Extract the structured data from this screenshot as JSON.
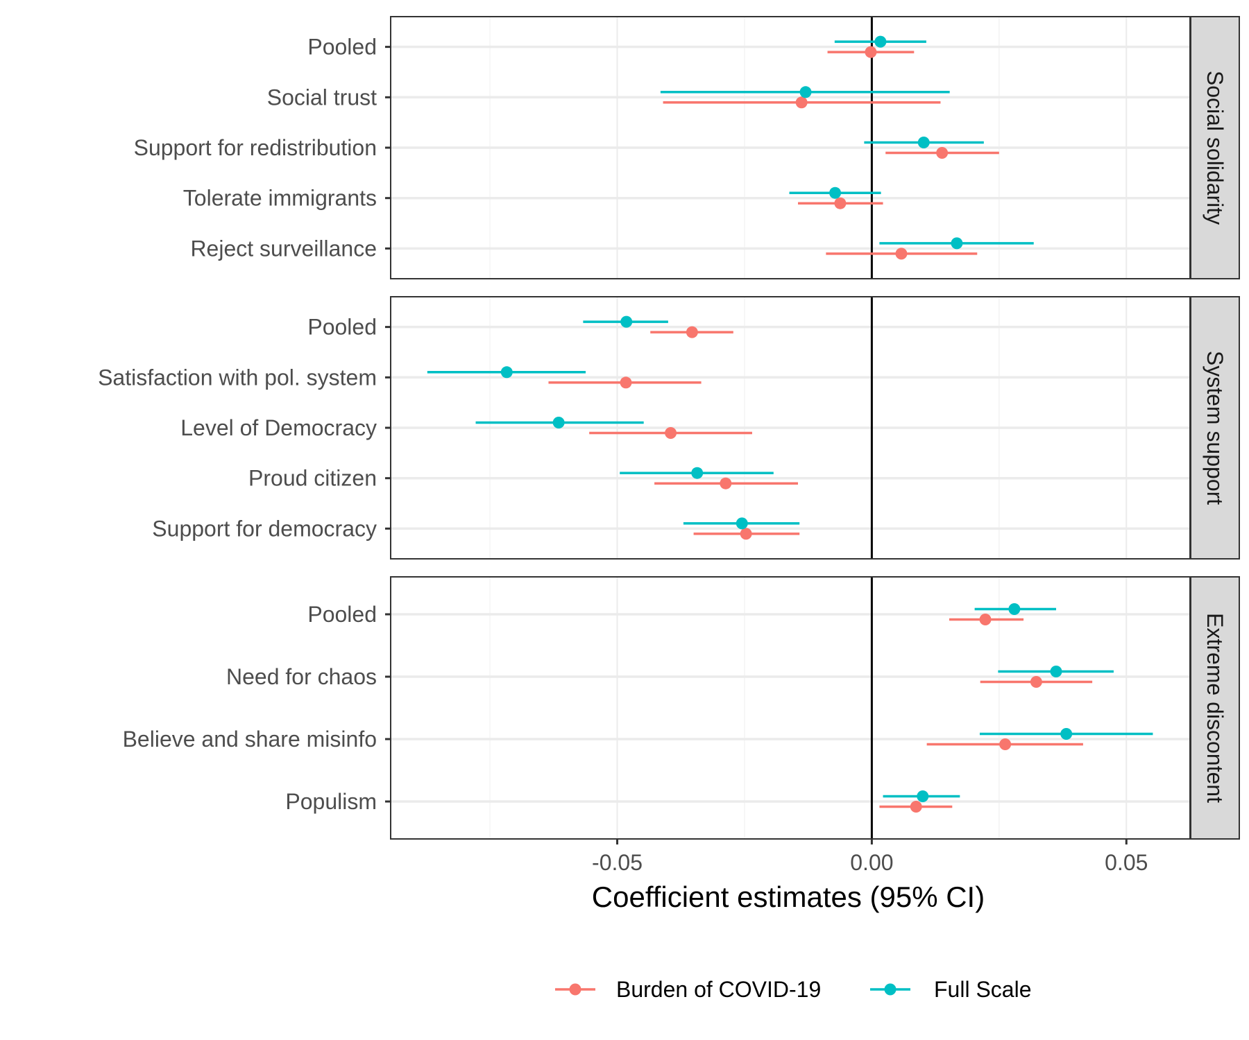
{
  "chart_data": {
    "type": "scatter",
    "subtype": "coefficient-plot",
    "xlabel": "Coefficient estimates (95% CI)",
    "x_ticks": [
      "-0.05",
      "0.00",
      "0.05"
    ],
    "x_tick_values": [
      -0.05,
      0.0,
      0.05
    ],
    "xlim": [
      -0.0945,
      0.0625
    ],
    "reference_line_x": 0,
    "grid": true,
    "legend_position": "bottom",
    "series_order": [
      "burden",
      "full"
    ],
    "series": [
      {
        "key": "burden",
        "name": "Burden of COVID-19",
        "color": "#F8766D"
      },
      {
        "key": "full",
        "name": "Full Scale",
        "color": "#00BFC4"
      }
    ],
    "panels": [
      {
        "strip": "Social solidarity",
        "rows": [
          {
            "label": "Pooled",
            "full": {
              "est": 0.0017,
              "lo": -0.0073,
              "hi": 0.0107
            },
            "burden": {
              "est": -0.0002,
              "lo": -0.0087,
              "hi": 0.0083
            }
          },
          {
            "label": "Social trust",
            "full": {
              "est": -0.013,
              "lo": -0.0415,
              "hi": 0.0153
            },
            "burden": {
              "est": -0.0138,
              "lo": -0.041,
              "hi": 0.0135
            }
          },
          {
            "label": "Support for redistribution",
            "full": {
              "est": 0.0102,
              "lo": -0.0015,
              "hi": 0.022
            },
            "burden": {
              "est": 0.0138,
              "lo": 0.0027,
              "hi": 0.025
            }
          },
          {
            "label": "Tolerate immigrants",
            "full": {
              "est": -0.0072,
              "lo": -0.0162,
              "hi": 0.0018
            },
            "burden": {
              "est": -0.0062,
              "lo": -0.0145,
              "hi": 0.0022
            }
          },
          {
            "label": "Reject surveillance",
            "full": {
              "est": 0.0167,
              "lo": 0.0015,
              "hi": 0.0318
            },
            "burden": {
              "est": 0.0058,
              "lo": -0.009,
              "hi": 0.0207
            }
          }
        ]
      },
      {
        "strip": "System support",
        "rows": [
          {
            "label": "Pooled",
            "full": {
              "est": -0.0482,
              "lo": -0.0567,
              "hi": -0.04
            },
            "burden": {
              "est": -0.0353,
              "lo": -0.0435,
              "hi": -0.0272
            }
          },
          {
            "label": "Satisfaction with pol. system",
            "full": {
              "est": -0.0717,
              "lo": -0.0873,
              "hi": -0.0562
            },
            "burden": {
              "est": -0.0483,
              "lo": -0.0635,
              "hi": -0.0335
            }
          },
          {
            "label": "Level of Democracy",
            "full": {
              "est": -0.0615,
              "lo": -0.0778,
              "hi": -0.0448
            },
            "burden": {
              "est": -0.0395,
              "lo": -0.0555,
              "hi": -0.0235
            }
          },
          {
            "label": "Proud citizen",
            "full": {
              "est": -0.0343,
              "lo": -0.0495,
              "hi": -0.0193
            },
            "burden": {
              "est": -0.0287,
              "lo": -0.0427,
              "hi": -0.0145
            }
          },
          {
            "label": "Support for democracy",
            "full": {
              "est": -0.0255,
              "lo": -0.037,
              "hi": -0.0142
            },
            "burden": {
              "est": -0.0247,
              "lo": -0.035,
              "hi": -0.0142
            }
          }
        ]
      },
      {
        "strip": "Extreme discontent",
        "rows": [
          {
            "label": "Pooled",
            "full": {
              "est": 0.028,
              "lo": 0.0202,
              "hi": 0.0362
            },
            "burden": {
              "est": 0.0223,
              "lo": 0.0152,
              "hi": 0.0298
            }
          },
          {
            "label": "Need for chaos",
            "full": {
              "est": 0.0362,
              "lo": 0.0248,
              "hi": 0.0475
            },
            "burden": {
              "est": 0.0323,
              "lo": 0.0213,
              "hi": 0.0433
            }
          },
          {
            "label": "Believe and share misinfo",
            "full": {
              "est": 0.0382,
              "lo": 0.0212,
              "hi": 0.0552
            },
            "burden": {
              "est": 0.0262,
              "lo": 0.0108,
              "hi": 0.0415
            }
          },
          {
            "label": "Populism",
            "full": {
              "est": 0.01,
              "lo": 0.0022,
              "hi": 0.0173
            },
            "burden": {
              "est": 0.0087,
              "lo": 0.0015,
              "hi": 0.0158
            }
          }
        ]
      }
    ]
  }
}
